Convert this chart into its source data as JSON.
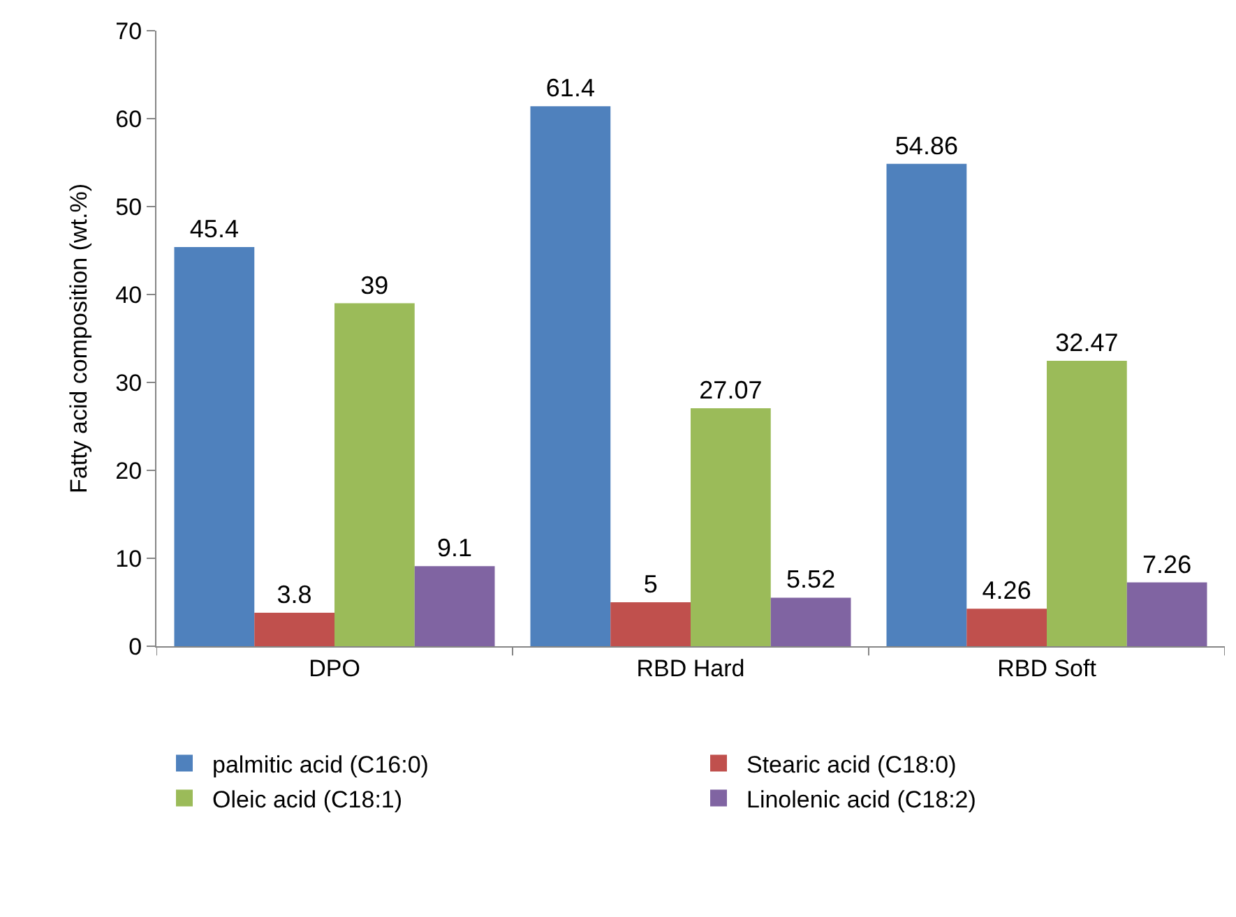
{
  "chart_data": {
    "type": "bar",
    "ylabel": "Fatty acid composition (wt.%)",
    "categories": [
      "DPO",
      "RBD Hard",
      "RBD Soft"
    ],
    "series": [
      {
        "name": "palmitic acid (C16:0)",
        "color": "#4f81bd",
        "values": [
          45.4,
          61.4,
          54.86
        ]
      },
      {
        "name": "Stearic acid (C18:0)",
        "color": "#c0504d",
        "values": [
          3.8,
          5,
          4.26
        ]
      },
      {
        "name": "Oleic acid (C18:1)",
        "color": "#9bbb59",
        "values": [
          39,
          27.07,
          32.47
        ]
      },
      {
        "name": "Linolenic acid (C18:2)",
        "color": "#8064a2",
        "values": [
          9.1,
          5.52,
          7.26
        ]
      }
    ],
    "ylim": [
      0,
      70
    ],
    "yticks": [
      0,
      10,
      20,
      30,
      40,
      50,
      60,
      70
    ],
    "data_labels": true,
    "legend": "bottom"
  }
}
